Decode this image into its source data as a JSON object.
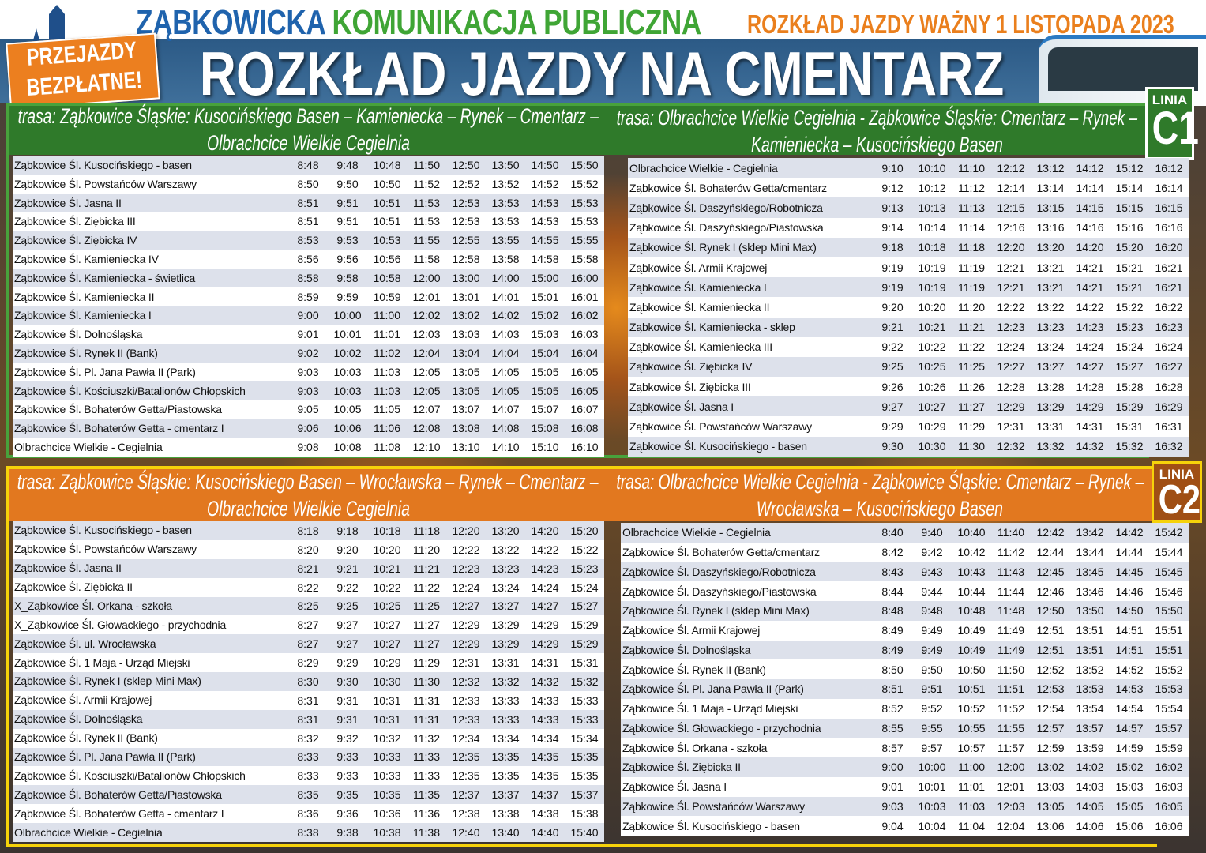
{
  "header": {
    "brand_blue": "ZĄBKOWICKA",
    "brand_green": "KOMUNIKACJA PUBLICZNA",
    "validity": "ROZKŁAD JAZDY WAŻNY 1 LISTOPADA 2023",
    "promo_line1": "PRZEJAZDY",
    "promo_line2": "BEZPŁATNE!",
    "title": "ROZKŁAD JAZDY NA CMENTARZ"
  },
  "colors": {
    "blue": "#1f63ad",
    "green": "#3fa535",
    "orange": "#ea7f1d",
    "c1": "#2f7a2a",
    "c2": "#e2781f",
    "c2_border": "#f6d20a"
  },
  "c1": {
    "label": "LINIA",
    "number": "C1",
    "left": {
      "route": [
        "trasa: Ząbkowice Śląskie: Kusocińskiego Basen – Kamieniecka – Rynek – Cmentarz –",
        "Olbrachcice Wielkie Cegielnia"
      ],
      "rows": [
        [
          "Ząbkowice Śl. Kusocińskiego - basen",
          "8:48",
          "9:48",
          "10:48",
          "11:50",
          "12:50",
          "13:50",
          "14:50",
          "15:50"
        ],
        [
          "Ząbkowice Śl. Powstańców Warszawy",
          "8:50",
          "9:50",
          "10:50",
          "11:52",
          "12:52",
          "13:52",
          "14:52",
          "15:52"
        ],
        [
          "Ząbkowice Śl. Jasna II",
          "8:51",
          "9:51",
          "10:51",
          "11:53",
          "12:53",
          "13:53",
          "14:53",
          "15:53"
        ],
        [
          "Ząbkowice Śl. Ziębicka III",
          "8:51",
          "9:51",
          "10:51",
          "11:53",
          "12:53",
          "13:53",
          "14:53",
          "15:53"
        ],
        [
          "Ząbkowice Śl. Ziębicka IV",
          "8:53",
          "9:53",
          "10:53",
          "11:55",
          "12:55",
          "13:55",
          "14:55",
          "15:55"
        ],
        [
          "Ząbkowice Śl. Kamieniecka IV",
          "8:56",
          "9:56",
          "10:56",
          "11:58",
          "12:58",
          "13:58",
          "14:58",
          "15:58"
        ],
        [
          "Ząbkowice Śl. Kamieniecka - świetlica",
          "8:58",
          "9:58",
          "10:58",
          "12:00",
          "13:00",
          "14:00",
          "15:00",
          "16:00"
        ],
        [
          "Ząbkowice Śl. Kamieniecka II",
          "8:59",
          "9:59",
          "10:59",
          "12:01",
          "13:01",
          "14:01",
          "15:01",
          "16:01"
        ],
        [
          "Ząbkowice Śl. Kamieniecka I",
          "9:00",
          "10:00",
          "11:00",
          "12:02",
          "13:02",
          "14:02",
          "15:02",
          "16:02"
        ],
        [
          "Ząbkowice Śl. Dolnośląska",
          "9:01",
          "10:01",
          "11:01",
          "12:03",
          "13:03",
          "14:03",
          "15:03",
          "16:03"
        ],
        [
          "Ząbkowice Śl. Rynek II (Bank)",
          "9:02",
          "10:02",
          "11:02",
          "12:04",
          "13:04",
          "14:04",
          "15:04",
          "16:04"
        ],
        [
          "Ząbkowice Śl. Pl. Jana Pawła II (Park)",
          "9:03",
          "10:03",
          "11:03",
          "12:05",
          "13:05",
          "14:05",
          "15:05",
          "16:05"
        ],
        [
          "Ząbkowice Śl. Kościuszki/Batalionów Chłopskich",
          "9:03",
          "10:03",
          "11:03",
          "12:05",
          "13:05",
          "14:05",
          "15:05",
          "16:05"
        ],
        [
          "Ząbkowice Śl. Bohaterów Getta/Piastowska",
          "9:05",
          "10:05",
          "11:05",
          "12:07",
          "13:07",
          "14:07",
          "15:07",
          "16:07"
        ],
        [
          "Ząbkowice Śl. Bohaterów Getta - cmentarz I",
          "9:06",
          "10:06",
          "11:06",
          "12:08",
          "13:08",
          "14:08",
          "15:08",
          "16:08"
        ],
        [
          "Olbrachcice Wielkie - Cegielnia",
          "9:08",
          "10:08",
          "11:08",
          "12:10",
          "13:10",
          "14:10",
          "15:10",
          "16:10"
        ]
      ]
    },
    "right": {
      "route": [
        "trasa: Olbrachcice Wielkie Cegielnia - Ząbkowice Śląskie: Cmentarz – Rynek –",
        "Kamieniecka – Kusocińskiego Basen"
      ],
      "rows": [
        [
          "Olbrachcice Wielkie - Cegielnia",
          "9:10",
          "10:10",
          "11:10",
          "12:12",
          "13:12",
          "14:12",
          "15:12",
          "16:12"
        ],
        [
          "Ząbkowice Śl. Bohaterów Getta/cmentarz",
          "9:12",
          "10:12",
          "11:12",
          "12:14",
          "13:14",
          "14:14",
          "15:14",
          "16:14"
        ],
        [
          "Ząbkowice Śl. Daszyńskiego/Robotnicza",
          "9:13",
          "10:13",
          "11:13",
          "12:15",
          "13:15",
          "14:15",
          "15:15",
          "16:15"
        ],
        [
          "Ząbkowice Śl. Daszyńskiego/Piastowska",
          "9:14",
          "10:14",
          "11:14",
          "12:16",
          "13:16",
          "14:16",
          "15:16",
          "16:16"
        ],
        [
          "Ząbkowice Śl. Rynek I (sklep Mini Max)",
          "9:18",
          "10:18",
          "11:18",
          "12:20",
          "13:20",
          "14:20",
          "15:20",
          "16:20"
        ],
        [
          "Ząbkowice Śl. Armii Krajowej",
          "9:19",
          "10:19",
          "11:19",
          "12:21",
          "13:21",
          "14:21",
          "15:21",
          "16:21"
        ],
        [
          "Ząbkowice Śl. Kamieniecka I",
          "9:19",
          "10:19",
          "11:19",
          "12:21",
          "13:21",
          "14:21",
          "15:21",
          "16:21"
        ],
        [
          "Ząbkowice Śl. Kamieniecka II",
          "9:20",
          "10:20",
          "11:20",
          "12:22",
          "13:22",
          "14:22",
          "15:22",
          "16:22"
        ],
        [
          "Ząbkowice Śl. Kamieniecka - sklep",
          "9:21",
          "10:21",
          "11:21",
          "12:23",
          "13:23",
          "14:23",
          "15:23",
          "16:23"
        ],
        [
          "Ząbkowice Śl. Kamieniecka III",
          "9:22",
          "10:22",
          "11:22",
          "12:24",
          "13:24",
          "14:24",
          "15:24",
          "16:24"
        ],
        [
          "Ząbkowice Śl. Ziębicka IV",
          "9:25",
          "10:25",
          "11:25",
          "12:27",
          "13:27",
          "14:27",
          "15:27",
          "16:27"
        ],
        [
          "Ząbkowice Śl. Ziębicka III",
          "9:26",
          "10:26",
          "11:26",
          "12:28",
          "13:28",
          "14:28",
          "15:28",
          "16:28"
        ],
        [
          "Ząbkowice Śl. Jasna I",
          "9:27",
          "10:27",
          "11:27",
          "12:29",
          "13:29",
          "14:29",
          "15:29",
          "16:29"
        ],
        [
          "Ząbkowice Śl. Powstańców Warszawy",
          "9:29",
          "10:29",
          "11:29",
          "12:31",
          "13:31",
          "14:31",
          "15:31",
          "16:31"
        ],
        [
          "Ząbkowice Śl. Kusocińskiego - basen",
          "9:30",
          "10:30",
          "11:30",
          "12:32",
          "13:32",
          "14:32",
          "15:32",
          "16:32"
        ]
      ]
    }
  },
  "c2": {
    "label": "LINIA",
    "number": "C2",
    "left": {
      "route": [
        "trasa: Ząbkowice Śląskie: Kusocińskiego Basen – Wrocławska – Rynek – Cmentarz –",
        "Olbrachcice Wielkie Cegielnia"
      ],
      "rows": [
        [
          "Ząbkowice Śl. Kusocińskiego - basen",
          "8:18",
          "9:18",
          "10:18",
          "11:18",
          "12:20",
          "13:20",
          "14:20",
          "15:20"
        ],
        [
          "Ząbkowice Śl. Powstańców Warszawy",
          "8:20",
          "9:20",
          "10:20",
          "11:20",
          "12:22",
          "13:22",
          "14:22",
          "15:22"
        ],
        [
          "Ząbkowice Śl. Jasna II",
          "8:21",
          "9:21",
          "10:21",
          "11:21",
          "12:23",
          "13:23",
          "14:23",
          "15:23"
        ],
        [
          "Ząbkowice Śl. Ziębicka II",
          "8:22",
          "9:22",
          "10:22",
          "11:22",
          "12:24",
          "13:24",
          "14:24",
          "15:24"
        ],
        [
          "X_Ząbkowice Śl. Orkana - szkoła",
          "8:25",
          "9:25",
          "10:25",
          "11:25",
          "12:27",
          "13:27",
          "14:27",
          "15:27"
        ],
        [
          "X_Ząbkowice Śl. Głowackiego - przychodnia",
          "8:27",
          "9:27",
          "10:27",
          "11:27",
          "12:29",
          "13:29",
          "14:29",
          "15:29"
        ],
        [
          "Ząbkowice Śl. ul. Wrocławska",
          "8:27",
          "9:27",
          "10:27",
          "11:27",
          "12:29",
          "13:29",
          "14:29",
          "15:29"
        ],
        [
          "Ząbkowice Śl. 1 Maja - Urząd Miejski",
          "8:29",
          "9:29",
          "10:29",
          "11:29",
          "12:31",
          "13:31",
          "14:31",
          "15:31"
        ],
        [
          "Ząbkowice Śl. Rynek I (sklep Mini Max)",
          "8:30",
          "9:30",
          "10:30",
          "11:30",
          "12:32",
          "13:32",
          "14:32",
          "15:32"
        ],
        [
          "Ząbkowice Śl. Armii Krajowej",
          "8:31",
          "9:31",
          "10:31",
          "11:31",
          "12:33",
          "13:33",
          "14:33",
          "15:33"
        ],
        [
          "Ząbkowice Śl. Dolnośląska",
          "8:31",
          "9:31",
          "10:31",
          "11:31",
          "12:33",
          "13:33",
          "14:33",
          "15:33"
        ],
        [
          "Ząbkowice Śl. Rynek II (Bank)",
          "8:32",
          "9:32",
          "10:32",
          "11:32",
          "12:34",
          "13:34",
          "14:34",
          "15:34"
        ],
        [
          "Ząbkowice Śl. Pl. Jana Pawła II (Park)",
          "8:33",
          "9:33",
          "10:33",
          "11:33",
          "12:35",
          "13:35",
          "14:35",
          "15:35"
        ],
        [
          "Ząbkowice Śl. Kościuszki/Batalionów Chłopskich",
          "8:33",
          "9:33",
          "10:33",
          "11:33",
          "12:35",
          "13:35",
          "14:35",
          "15:35"
        ],
        [
          "Ząbkowice Śl. Bohaterów Getta/Piastowska",
          "8:35",
          "9:35",
          "10:35",
          "11:35",
          "12:37",
          "13:37",
          "14:37",
          "15:37"
        ],
        [
          "Ząbkowice Śl. Bohaterów Getta - cmentarz I",
          "8:36",
          "9:36",
          "10:36",
          "11:36",
          "12:38",
          "13:38",
          "14:38",
          "15:38"
        ],
        [
          "Olbrachcice Wielkie - Cegielnia",
          "8:38",
          "9:38",
          "10:38",
          "11:38",
          "12:40",
          "13:40",
          "14:40",
          "15:40"
        ]
      ]
    },
    "right": {
      "route": [
        "trasa: Olbrachcice Wielkie Cegielnia - Ząbkowice Śląskie: Cmentarz – Rynek –",
        "Wrocławska – Kusocińskiego Basen"
      ],
      "rows": [
        [
          "Olbrachcice Wielkie - Cegielnia",
          "8:40",
          "9:40",
          "10:40",
          "11:40",
          "12:42",
          "13:42",
          "14:42",
          "15:42"
        ],
        [
          "Ząbkowice Śl. Bohaterów Getta/cmentarz",
          "8:42",
          "9:42",
          "10:42",
          "11:42",
          "12:44",
          "13:44",
          "14:44",
          "15:44"
        ],
        [
          "Ząbkowice Śl. Daszyńskiego/Robotnicza",
          "8:43",
          "9:43",
          "10:43",
          "11:43",
          "12:45",
          "13:45",
          "14:45",
          "15:45"
        ],
        [
          "Ząbkowice Śl. Daszyńskiego/Piastowska",
          "8:44",
          "9:44",
          "10:44",
          "11:44",
          "12:46",
          "13:46",
          "14:46",
          "15:46"
        ],
        [
          "Ząbkowice Śl. Rynek I (sklep Mini Max)",
          "8:48",
          "9:48",
          "10:48",
          "11:48",
          "12:50",
          "13:50",
          "14:50",
          "15:50"
        ],
        [
          "Ząbkowice Śl. Armii Krajowej",
          "8:49",
          "9:49",
          "10:49",
          "11:49",
          "12:51",
          "13:51",
          "14:51",
          "15:51"
        ],
        [
          "Ząbkowice Śl. Dolnośląska",
          "8:49",
          "9:49",
          "10:49",
          "11:49",
          "12:51",
          "13:51",
          "14:51",
          "15:51"
        ],
        [
          "Ząbkowice Śl. Rynek II (Bank)",
          "8:50",
          "9:50",
          "10:50",
          "11:50",
          "12:52",
          "13:52",
          "14:52",
          "15:52"
        ],
        [
          "Ząbkowice Śl. Pl. Jana Pawła II (Park)",
          "8:51",
          "9:51",
          "10:51",
          "11:51",
          "12:53",
          "13:53",
          "14:53",
          "15:53"
        ],
        [
          "Ząbkowice Śl. 1 Maja - Urząd Miejski",
          "8:52",
          "9:52",
          "10:52",
          "11:52",
          "12:54",
          "13:54",
          "14:54",
          "15:54"
        ],
        [
          "Ząbkowice Śl. Głowackiego - przychodnia",
          "8:55",
          "9:55",
          "10:55",
          "11:55",
          "12:57",
          "13:57",
          "14:57",
          "15:57"
        ],
        [
          "Ząbkowice Śl. Orkana - szkoła",
          "8:57",
          "9:57",
          "10:57",
          "11:57",
          "12:59",
          "13:59",
          "14:59",
          "15:59"
        ],
        [
          "Ząbkowice Śl. Ziębicka II",
          "9:00",
          "10:00",
          "11:00",
          "12:00",
          "13:02",
          "14:02",
          "15:02",
          "16:02"
        ],
        [
          "Ząbkowice Śl. Jasna I",
          "9:01",
          "10:01",
          "11:01",
          "12:01",
          "13:03",
          "14:03",
          "15:03",
          "16:03"
        ],
        [
          "Ząbkowice Śl. Powstańców Warszawy",
          "9:03",
          "10:03",
          "11:03",
          "12:03",
          "13:05",
          "14:05",
          "15:05",
          "16:05"
        ],
        [
          "Ząbkowice Śl. Kusocińskiego - basen",
          "9:04",
          "10:04",
          "11:04",
          "12:04",
          "13:06",
          "14:06",
          "15:06",
          "16:06"
        ]
      ]
    }
  }
}
